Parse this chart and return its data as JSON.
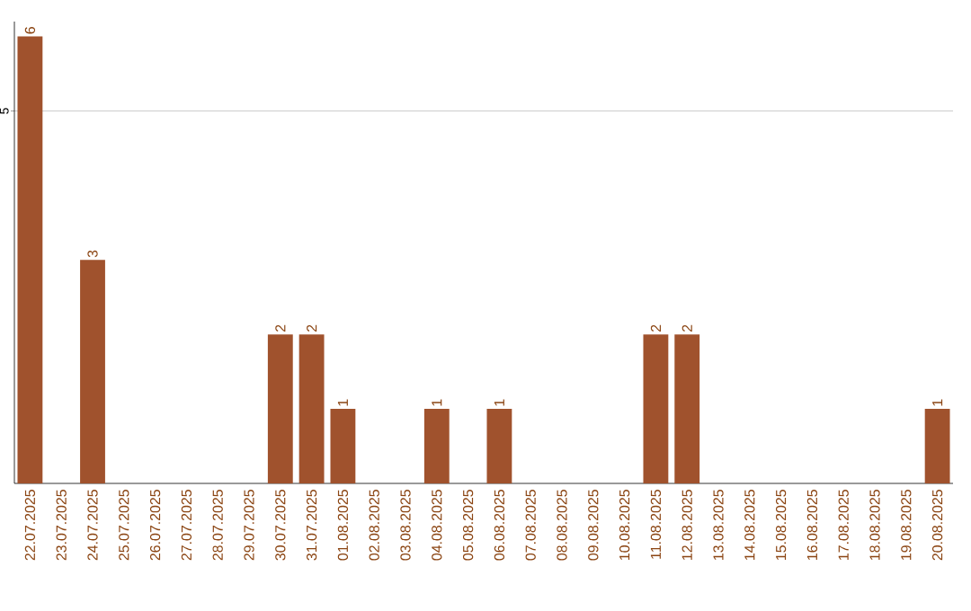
{
  "chart_data": {
    "type": "bar",
    "categories": [
      "22.07.2025",
      "23.07.2025",
      "24.07.2025",
      "25.07.2025",
      "26.07.2025",
      "27.07.2025",
      "28.07.2025",
      "29.07.2025",
      "30.07.2025",
      "31.07.2025",
      "01.08.2025",
      "02.08.2025",
      "03.08.2025",
      "04.08.2025",
      "05.08.2025",
      "06.08.2025",
      "07.08.2025",
      "08.08.2025",
      "09.08.2025",
      "10.08.2025",
      "11.08.2025",
      "12.08.2025",
      "13.08.2025",
      "14.08.2025",
      "15.08.2025",
      "16.08.2025",
      "17.08.2025",
      "18.08.2025",
      "19.08.2025",
      "20.08.2025"
    ],
    "values": [
      6,
      0,
      3,
      0,
      0,
      0,
      0,
      0,
      2,
      2,
      1,
      0,
      0,
      1,
      0,
      1,
      0,
      0,
      0,
      0,
      2,
      2,
      0,
      0,
      0,
      0,
      0,
      0,
      0,
      1
    ],
    "value_labels": [
      "6",
      null,
      "3",
      null,
      null,
      null,
      null,
      null,
      "2",
      "2",
      "1",
      null,
      null,
      "1",
      null,
      "1",
      null,
      null,
      null,
      null,
      "2",
      "2",
      null,
      null,
      null,
      null,
      null,
      null,
      null,
      "1"
    ],
    "color": "#a0522d",
    "ylim": [
      0,
      6.2
    ],
    "yticks": [
      5
    ],
    "grid": "y"
  }
}
